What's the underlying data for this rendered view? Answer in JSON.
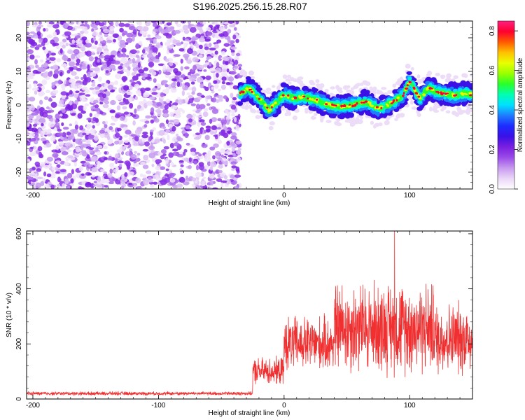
{
  "title": "S196.2025.256.15.28.R07",
  "chart_data": [
    {
      "type": "heatmap",
      "xlabel": "Height of straight line (km)",
      "ylabel": "Frequency (Hz)",
      "xlim": [
        -205,
        150
      ],
      "ylim": [
        -25,
        25
      ],
      "xticks": [
        -200,
        -100,
        0,
        100
      ],
      "yticks": [
        -20,
        -10,
        0,
        10,
        20
      ],
      "colorbar": {
        "label": "Normalized spectral amplitude",
        "range": [
          0.0,
          0.85
        ],
        "ticks": [
          0.0,
          0.2,
          0.4,
          0.6,
          0.8
        ],
        "colors": [
          "#ffffff",
          "#ead6f7",
          "#c89af0",
          "#9a4ce8",
          "#7a1fe0",
          "#3a10e6",
          "#1d2cff",
          "#1f7cff",
          "#00e0ff",
          "#00ffb0",
          "#29ff29",
          "#9aff00",
          "#e8ff00",
          "#ffc000",
          "#ff5a00",
          "#ff0030",
          "#ff2080"
        ]
      },
      "noise_region_x": [
        -205,
        -35
      ],
      "signal_track": [
        {
          "x": -35,
          "y": 3.5
        },
        {
          "x": -28,
          "y": 5.0
        },
        {
          "x": -20,
          "y": 2.0
        },
        {
          "x": -12,
          "y": -1.5
        },
        {
          "x": -5,
          "y": 1.0
        },
        {
          "x": 0,
          "y": 3.0
        },
        {
          "x": 8,
          "y": 2.0
        },
        {
          "x": 15,
          "y": 2.5
        },
        {
          "x": 25,
          "y": 1.5
        },
        {
          "x": 35,
          "y": 0.0
        },
        {
          "x": 45,
          "y": -0.5
        },
        {
          "x": 55,
          "y": 0.0
        },
        {
          "x": 65,
          "y": 1.0
        },
        {
          "x": 75,
          "y": -1.0
        },
        {
          "x": 85,
          "y": 0.5
        },
        {
          "x": 95,
          "y": 3.0
        },
        {
          "x": 100,
          "y": 7.0
        },
        {
          "x": 108,
          "y": 2.0
        },
        {
          "x": 115,
          "y": 5.0
        },
        {
          "x": 125,
          "y": 3.5
        },
        {
          "x": 135,
          "y": 3.0
        },
        {
          "x": 145,
          "y": 3.5
        },
        {
          "x": 150,
          "y": 3.0
        }
      ]
    },
    {
      "type": "line",
      "xlabel": "Height of straight line (km)",
      "ylabel": "SNR (10 * v/v)",
      "xlim": [
        -205,
        150
      ],
      "ylim": [
        0,
        610
      ],
      "xticks": [
        -200,
        -100,
        0,
        100
      ],
      "yticks": [
        0,
        200,
        400,
        600
      ],
      "series": [
        {
          "color": "#f03030",
          "segments": [
            {
              "x": [
                -205,
                -25
              ],
              "baseline": 20,
              "spread": 12
            },
            {
              "x": [
                -25,
                0
              ],
              "baseline": 100,
              "spread": 90
            },
            {
              "x": [
                0,
                40
              ],
              "baseline": 200,
              "spread": 180
            },
            {
              "x": [
                40,
                120
              ],
              "baseline": 260,
              "spread": 300
            },
            {
              "x": [
                120,
                150
              ],
              "baseline": 220,
              "spread": 240
            }
          ],
          "peak": {
            "x": 88,
            "y": 610
          }
        }
      ]
    }
  ]
}
